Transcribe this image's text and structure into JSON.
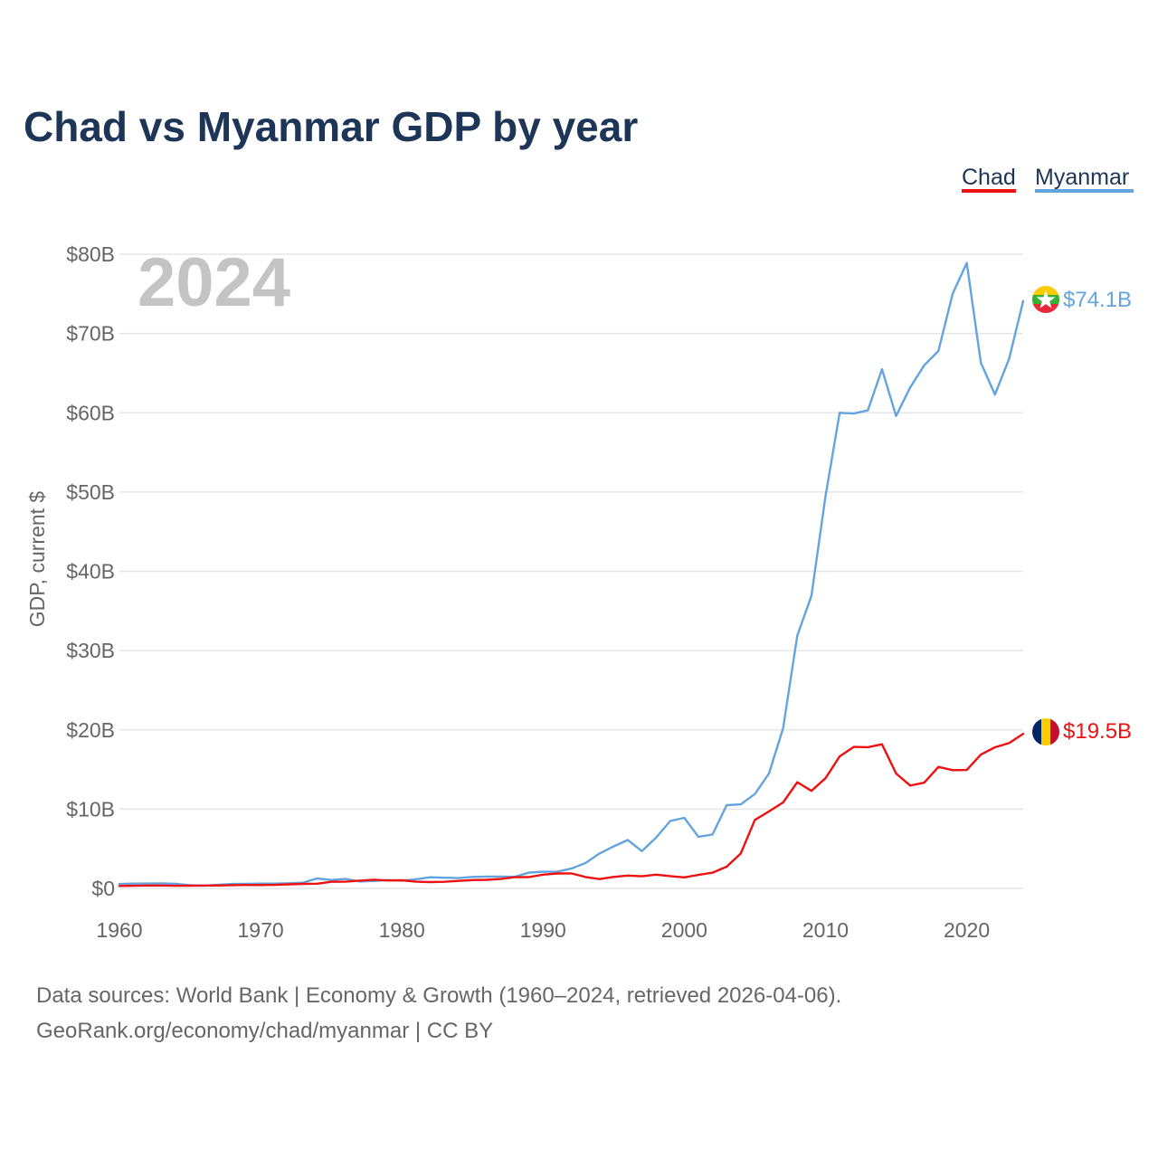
{
  "chart_data": {
    "type": "line",
    "title": "Chad vs Myanmar GDP by year",
    "ylabel": "GDP, current $",
    "xlabel": "",
    "xlim": [
      1960,
      2024
    ],
    "ylim": [
      0,
      80
    ],
    "y_unit": "billion USD",
    "x_ticks": [
      "1960",
      "1970",
      "1980",
      "1990",
      "2000",
      "2010",
      "2020"
    ],
    "y_ticks": [
      "$0",
      "$10B",
      "$20B",
      "$30B",
      "$40B",
      "$50B",
      "$60B",
      "$70B",
      "$80B"
    ],
    "highlight_year": "2024",
    "grid": true,
    "legend_position": "top-right",
    "years": [
      1960,
      1961,
      1962,
      1963,
      1964,
      1965,
      1966,
      1967,
      1968,
      1969,
      1970,
      1971,
      1972,
      1973,
      1974,
      1975,
      1976,
      1977,
      1978,
      1979,
      1980,
      1981,
      1982,
      1983,
      1984,
      1985,
      1986,
      1987,
      1988,
      1989,
      1990,
      1991,
      1992,
      1993,
      1994,
      1995,
      1996,
      1997,
      1998,
      1999,
      2000,
      2001,
      2002,
      2003,
      2004,
      2005,
      2006,
      2007,
      2008,
      2009,
      2010,
      2011,
      2012,
      2013,
      2014,
      2015,
      2016,
      2017,
      2018,
      2019,
      2020,
      2021,
      2022,
      2023,
      2024
    ],
    "series": [
      {
        "name": "Chad",
        "color": "#ee1111",
        "end_label": "$19.5B",
        "values": [
          0.31,
          0.33,
          0.36,
          0.37,
          0.33,
          0.34,
          0.36,
          0.37,
          0.41,
          0.43,
          0.42,
          0.44,
          0.51,
          0.57,
          0.59,
          0.83,
          0.85,
          0.98,
          1.09,
          1.0,
          1.03,
          0.85,
          0.8,
          0.83,
          0.95,
          1.05,
          1.08,
          1.19,
          1.42,
          1.43,
          1.74,
          1.88,
          1.9,
          1.44,
          1.18,
          1.45,
          1.62,
          1.53,
          1.74,
          1.55,
          1.39,
          1.7,
          1.99,
          2.74,
          4.41,
          8.64,
          9.71,
          10.84,
          13.4,
          12.3,
          13.9,
          16.65,
          17.85,
          17.81,
          18.18,
          14.49,
          12.98,
          13.34,
          15.33,
          14.92,
          14.94,
          16.88,
          17.8,
          18.33,
          19.5
        ]
      },
      {
        "name": "Myanmar",
        "color": "#64a4de",
        "end_label": "$74.1B",
        "values": [
          0.56,
          0.6,
          0.62,
          0.63,
          0.57,
          0.4,
          0.33,
          0.46,
          0.56,
          0.58,
          0.6,
          0.61,
          0.65,
          0.72,
          1.25,
          1.06,
          1.2,
          0.88,
          0.94,
          1.05,
          0.98,
          1.15,
          1.4,
          1.35,
          1.3,
          1.45,
          1.5,
          1.5,
          1.46,
          2.0,
          2.1,
          2.1,
          2.5,
          3.2,
          4.4,
          5.3,
          6.1,
          4.7,
          6.4,
          8.5,
          8.9,
          6.5,
          6.8,
          10.5,
          10.6,
          11.9,
          14.5,
          20.2,
          31.9,
          36.9,
          49.5,
          60.0,
          59.9,
          60.3,
          65.5,
          59.6,
          63.2,
          66.0,
          67.8,
          75.0,
          78.9,
          66.3,
          62.3,
          66.8,
          74.1
        ]
      }
    ]
  },
  "footer": {
    "source_line": "Data sources: World Bank | Economy & Growth (1960–2024, retrieved 2026-04-06).",
    "url_line": "GeoRank.org/economy/chad/myanmar | CC BY"
  }
}
